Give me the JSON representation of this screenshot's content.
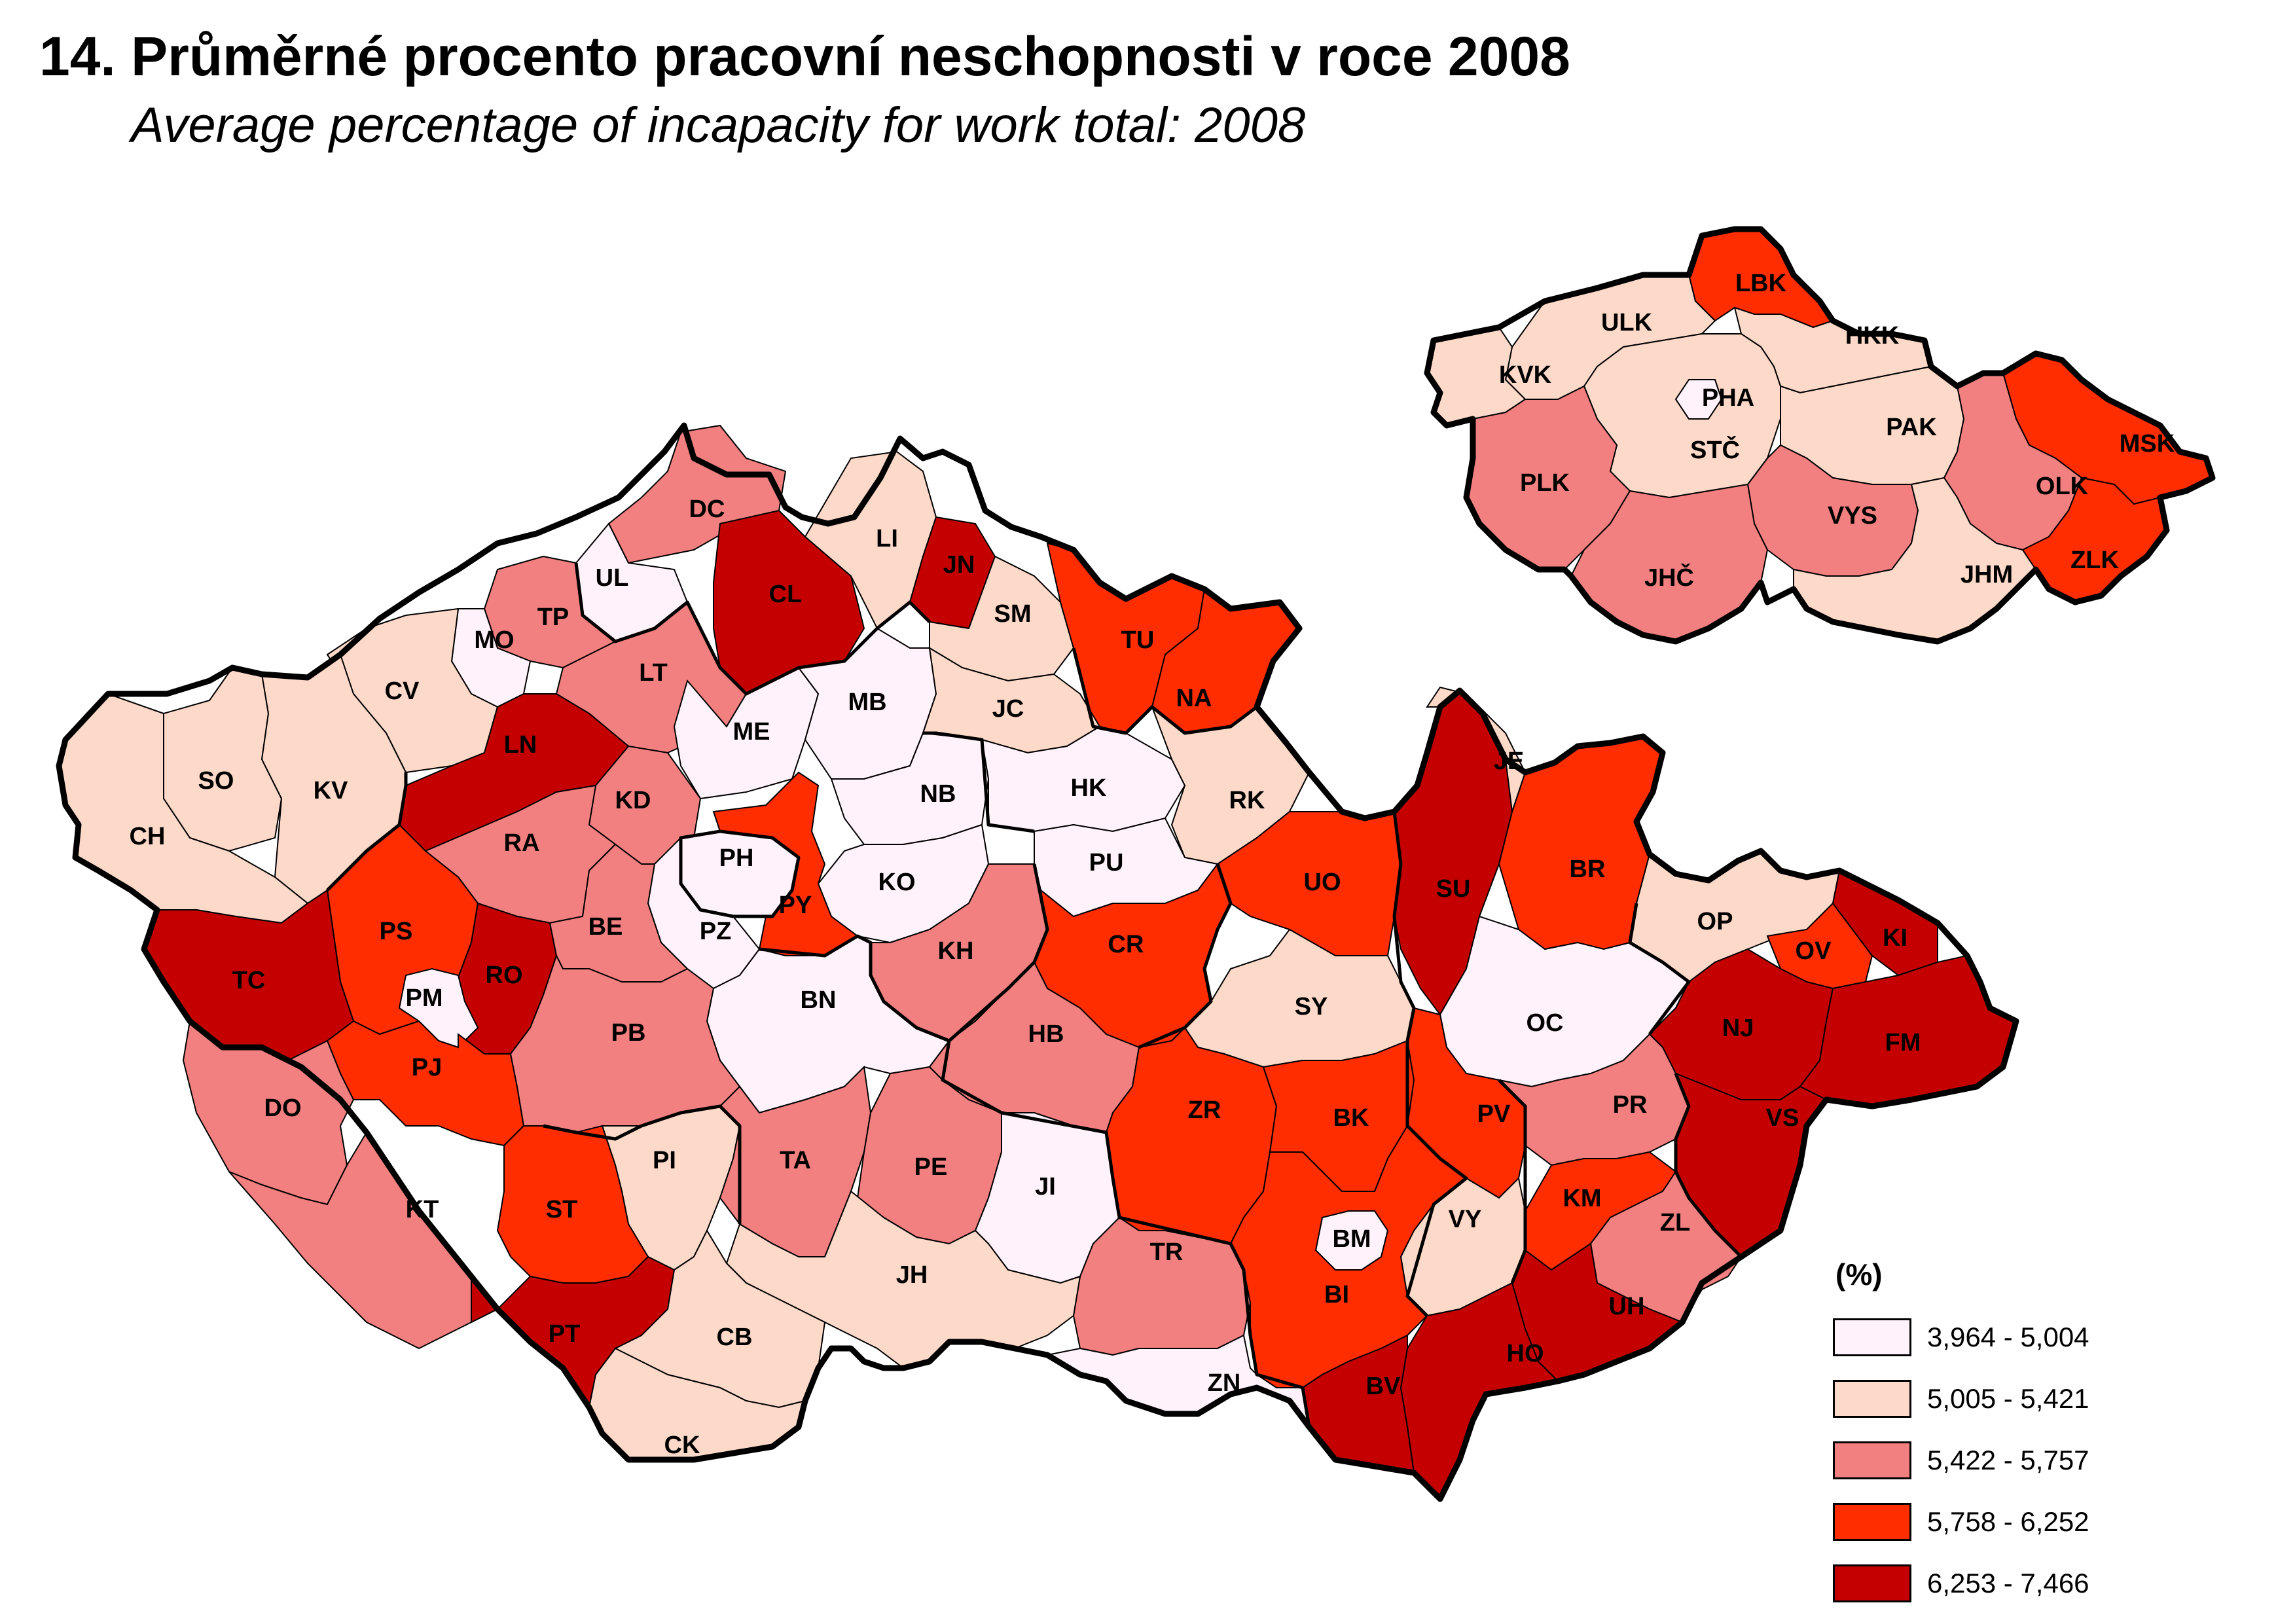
{
  "title": "14. Průměrné procento pracovní neschopnosti v roce 2008",
  "subtitle": "Average percentage of incapacity for work total: 2008",
  "legend": {
    "title": "(%)",
    "classes": [
      {
        "label": "3,964 - 5,004",
        "color": "#fff2fb"
      },
      {
        "label": "5,005 - 5,421",
        "color": "#fcd9c9"
      },
      {
        "label": "5,422 - 5,757",
        "color": "#f28080"
      },
      {
        "label": "5,758 - 6,252",
        "color": "#ff2d00"
      },
      {
        "label": "6,253 - 7,466",
        "color": "#c40000"
      }
    ]
  },
  "districts": [
    {
      "code": "DC",
      "class": 2
    },
    {
      "code": "UL",
      "class": 0
    },
    {
      "code": "CL",
      "class": 4
    },
    {
      "code": "LI",
      "class": 1
    },
    {
      "code": "JN",
      "class": 4
    },
    {
      "code": "TP",
      "class": 2
    },
    {
      "code": "MO",
      "class": 0
    },
    {
      "code": "LT",
      "class": 2
    },
    {
      "code": "SM",
      "class": 1
    },
    {
      "code": "TU",
      "class": 3
    },
    {
      "code": "CV",
      "class": 1
    },
    {
      "code": "LN",
      "class": 4
    },
    {
      "code": "ME",
      "class": 0
    },
    {
      "code": "MB",
      "class": 0
    },
    {
      "code": "JC",
      "class": 1
    },
    {
      "code": "NA",
      "class": 3
    },
    {
      "code": "SO",
      "class": 1
    },
    {
      "code": "KV",
      "class": 1
    },
    {
      "code": "CH",
      "class": 1
    },
    {
      "code": "KD",
      "class": 2
    },
    {
      "code": "RA",
      "class": 2
    },
    {
      "code": "NB",
      "class": 0
    },
    {
      "code": "HK",
      "class": 0
    },
    {
      "code": "RK",
      "class": 1
    },
    {
      "code": "PH",
      "class": 0
    },
    {
      "code": "PU",
      "class": 0
    },
    {
      "code": "KO",
      "class": 0
    },
    {
      "code": "PY",
      "class": 3
    },
    {
      "code": "PZ",
      "class": 0
    },
    {
      "code": "UO",
      "class": 3
    },
    {
      "code": "SU",
      "class": 4
    },
    {
      "code": "BR",
      "class": 3
    },
    {
      "code": "JE",
      "class": 1
    },
    {
      "code": "PS",
      "class": 3
    },
    {
      "code": "RO",
      "class": 4
    },
    {
      "code": "TC",
      "class": 4
    },
    {
      "code": "BE",
      "class": 2
    },
    {
      "code": "PM",
      "class": 0
    },
    {
      "code": "PJ",
      "class": 3
    },
    {
      "code": "KH",
      "class": 2
    },
    {
      "code": "CR",
      "class": 3
    },
    {
      "code": "BN",
      "class": 0
    },
    {
      "code": "PB",
      "class": 2
    },
    {
      "code": "HB",
      "class": 2
    },
    {
      "code": "SY",
      "class": 1
    },
    {
      "code": "OP",
      "class": 1
    },
    {
      "code": "OV",
      "class": 3
    },
    {
      "code": "KI",
      "class": 4
    },
    {
      "code": "OC",
      "class": 0
    },
    {
      "code": "NJ",
      "class": 4
    },
    {
      "code": "FM",
      "class": 4
    },
    {
      "code": "DO",
      "class": 2
    },
    {
      "code": "ZR",
      "class": 3
    },
    {
      "code": "BK",
      "class": 3
    },
    {
      "code": "PV",
      "class": 3
    },
    {
      "code": "PR",
      "class": 2
    },
    {
      "code": "VS",
      "class": 4
    },
    {
      "code": "PI",
      "class": 1
    },
    {
      "code": "TA",
      "class": 2
    },
    {
      "code": "PE",
      "class": 2
    },
    {
      "code": "JI",
      "class": 0
    },
    {
      "code": "KT",
      "class": 2
    },
    {
      "code": "ST",
      "class": 3
    },
    {
      "code": "TR",
      "class": 2
    },
    {
      "code": "BM",
      "class": 0
    },
    {
      "code": "VY",
      "class": 1
    },
    {
      "code": "KM",
      "class": 3
    },
    {
      "code": "ZL",
      "class": 2
    },
    {
      "code": "UH",
      "class": 4
    },
    {
      "code": "JH",
      "class": 1
    },
    {
      "code": "BI",
      "class": 3
    },
    {
      "code": "PT",
      "class": 4
    },
    {
      "code": "CB",
      "class": 1
    },
    {
      "code": "HO",
      "class": 4
    },
    {
      "code": "ZN",
      "class": 0
    },
    {
      "code": "BV",
      "class": 4
    },
    {
      "code": "CK",
      "class": 1
    }
  ],
  "regions": [
    {
      "code": "LBK",
      "class": 3
    },
    {
      "code": "ULK",
      "class": 1
    },
    {
      "code": "HKK",
      "class": 1
    },
    {
      "code": "KVK",
      "class": 1
    },
    {
      "code": "PHA",
      "class": 0
    },
    {
      "code": "PAK",
      "class": 1
    },
    {
      "code": "STČ",
      "class": 1
    },
    {
      "code": "MSK",
      "class": 3
    },
    {
      "code": "PLK",
      "class": 2
    },
    {
      "code": "OLK",
      "class": 2
    },
    {
      "code": "VYS",
      "class": 2
    },
    {
      "code": "JHČ",
      "class": 2
    },
    {
      "code": "JHM",
      "class": 1
    },
    {
      "code": "ZLK",
      "class": 3
    }
  ]
}
